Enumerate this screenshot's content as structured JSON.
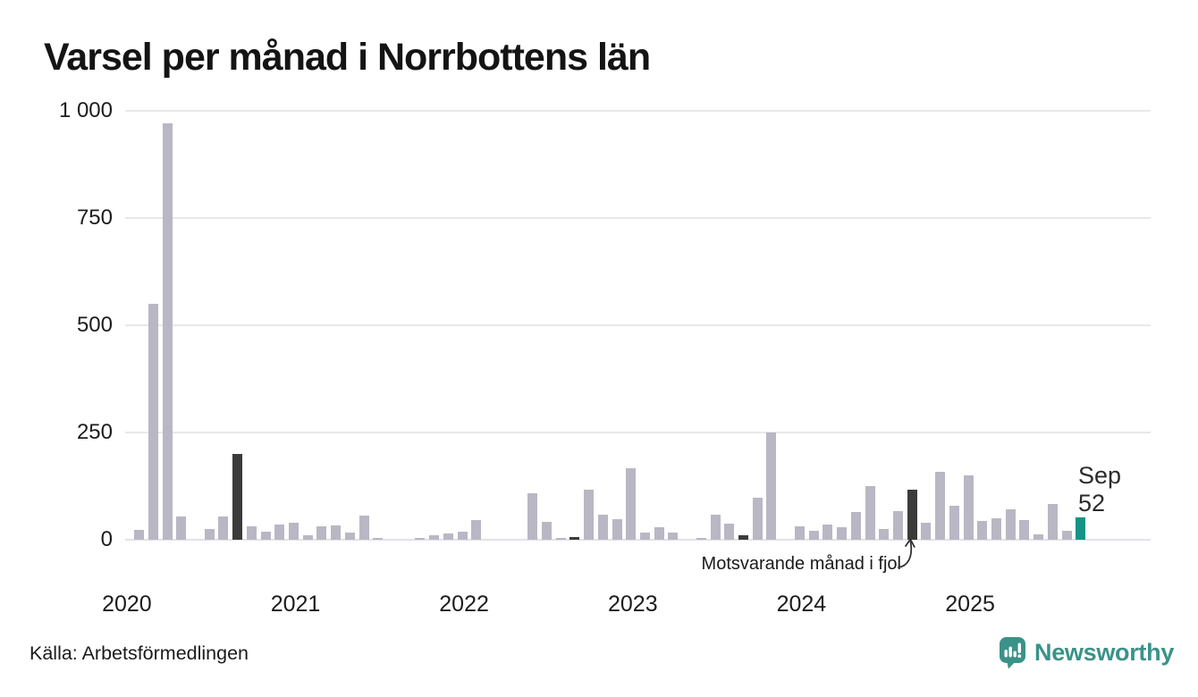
{
  "title": "Varsel per månad i Norrbottens län",
  "source": "Källa: Arbetsförmedlingen",
  "brand": {
    "name": "Newsworthy",
    "icon": "newsworthy-speech-bubble-chart-icon",
    "color": "#3b9289"
  },
  "annotation": {
    "text": "Motsvarande månad i fjol",
    "points_to": "2024-09"
  },
  "end_label": {
    "month": "Sep",
    "value": "52"
  },
  "colors": {
    "bar": "#b9b7c4",
    "same_month_bar": "#3b3b3b",
    "current_bar": "#149486",
    "gridline": "#e8e8ec",
    "text": "#1c1c1c"
  },
  "chart_data": {
    "type": "bar",
    "title": "Varsel per månad i Norrbottens län",
    "xlabel": "",
    "ylabel": "",
    "ylim": [
      0,
      1000
    ],
    "yticks": [
      "1 000",
      "750",
      "500",
      "250",
      "0"
    ],
    "ytick_values": [
      1000,
      750,
      500,
      250,
      0
    ],
    "years": [
      "2020",
      "2021",
      "2022",
      "2023",
      "2024",
      "2025"
    ],
    "grid": "horizontal only",
    "legend_position": "none",
    "highlight_notes": "dark bars = September each year (same month last year); teal bar = Sep 2025 current value",
    "months": [
      {
        "m": "2020-01",
        "v": 0,
        "t": "normal"
      },
      {
        "m": "2020-02",
        "v": 23,
        "t": "normal"
      },
      {
        "m": "2020-03",
        "v": 550,
        "t": "normal"
      },
      {
        "m": "2020-04",
        "v": 970,
        "t": "normal"
      },
      {
        "m": "2020-05",
        "v": 55,
        "t": "normal"
      },
      {
        "m": "2020-06",
        "v": 0,
        "t": "normal"
      },
      {
        "m": "2020-07",
        "v": 26,
        "t": "normal"
      },
      {
        "m": "2020-08",
        "v": 54,
        "t": "normal"
      },
      {
        "m": "2020-09",
        "v": 200,
        "t": "same-month"
      },
      {
        "m": "2020-10",
        "v": 31,
        "t": "normal"
      },
      {
        "m": "2020-11",
        "v": 19,
        "t": "normal"
      },
      {
        "m": "2020-12",
        "v": 35,
        "t": "normal"
      },
      {
        "m": "2021-01",
        "v": 39,
        "t": "normal"
      },
      {
        "m": "2021-02",
        "v": 11,
        "t": "normal"
      },
      {
        "m": "2021-03",
        "v": 31,
        "t": "normal"
      },
      {
        "m": "2021-04",
        "v": 33,
        "t": "normal"
      },
      {
        "m": "2021-05",
        "v": 17,
        "t": "normal"
      },
      {
        "m": "2021-06",
        "v": 57,
        "t": "normal"
      },
      {
        "m": "2021-07",
        "v": 5,
        "t": "normal"
      },
      {
        "m": "2021-08",
        "v": 0,
        "t": "normal"
      },
      {
        "m": "2021-09",
        "v": 0,
        "t": "same-month"
      },
      {
        "m": "2021-10",
        "v": 5,
        "t": "normal"
      },
      {
        "m": "2021-11",
        "v": 10,
        "t": "normal"
      },
      {
        "m": "2021-12",
        "v": 14,
        "t": "normal"
      },
      {
        "m": "2022-01",
        "v": 19,
        "t": "normal"
      },
      {
        "m": "2022-02",
        "v": 45,
        "t": "normal"
      },
      {
        "m": "2022-03",
        "v": 0,
        "t": "normal"
      },
      {
        "m": "2022-04",
        "v": 0,
        "t": "normal"
      },
      {
        "m": "2022-05",
        "v": 0,
        "t": "normal"
      },
      {
        "m": "2022-06",
        "v": 108,
        "t": "normal"
      },
      {
        "m": "2022-07",
        "v": 41,
        "t": "normal"
      },
      {
        "m": "2022-08",
        "v": 4,
        "t": "normal"
      },
      {
        "m": "2022-09",
        "v": 7,
        "t": "same-month"
      },
      {
        "m": "2022-10",
        "v": 117,
        "t": "normal"
      },
      {
        "m": "2022-11",
        "v": 59,
        "t": "normal"
      },
      {
        "m": "2022-12",
        "v": 47,
        "t": "normal"
      },
      {
        "m": "2023-01",
        "v": 166,
        "t": "normal"
      },
      {
        "m": "2023-02",
        "v": 16,
        "t": "normal"
      },
      {
        "m": "2023-03",
        "v": 30,
        "t": "normal"
      },
      {
        "m": "2023-04",
        "v": 17,
        "t": "normal"
      },
      {
        "m": "2023-05",
        "v": 0,
        "t": "normal"
      },
      {
        "m": "2023-06",
        "v": 4,
        "t": "normal"
      },
      {
        "m": "2023-07",
        "v": 59,
        "t": "normal"
      },
      {
        "m": "2023-08",
        "v": 38,
        "t": "normal"
      },
      {
        "m": "2023-09",
        "v": 11,
        "t": "same-month"
      },
      {
        "m": "2023-10",
        "v": 97,
        "t": "normal"
      },
      {
        "m": "2023-11",
        "v": 250,
        "t": "normal"
      },
      {
        "m": "2023-12",
        "v": 0,
        "t": "normal"
      },
      {
        "m": "2024-01",
        "v": 31,
        "t": "normal"
      },
      {
        "m": "2024-02",
        "v": 21,
        "t": "normal"
      },
      {
        "m": "2024-03",
        "v": 36,
        "t": "normal"
      },
      {
        "m": "2024-04",
        "v": 29,
        "t": "normal"
      },
      {
        "m": "2024-05",
        "v": 64,
        "t": "normal"
      },
      {
        "m": "2024-06",
        "v": 125,
        "t": "normal"
      },
      {
        "m": "2024-07",
        "v": 25,
        "t": "normal"
      },
      {
        "m": "2024-08",
        "v": 67,
        "t": "normal"
      },
      {
        "m": "2024-09",
        "v": 117,
        "t": "same-month"
      },
      {
        "m": "2024-10",
        "v": 40,
        "t": "normal"
      },
      {
        "m": "2024-11",
        "v": 158,
        "t": "normal"
      },
      {
        "m": "2024-12",
        "v": 80,
        "t": "normal"
      },
      {
        "m": "2025-01",
        "v": 150,
        "t": "normal"
      },
      {
        "m": "2025-02",
        "v": 44,
        "t": "normal"
      },
      {
        "m": "2025-03",
        "v": 49,
        "t": "normal"
      },
      {
        "m": "2025-04",
        "v": 71,
        "t": "normal"
      },
      {
        "m": "2025-05",
        "v": 46,
        "t": "normal"
      },
      {
        "m": "2025-06",
        "v": 13,
        "t": "normal"
      },
      {
        "m": "2025-07",
        "v": 84,
        "t": "normal"
      },
      {
        "m": "2025-08",
        "v": 20,
        "t": "normal"
      },
      {
        "m": "2025-09",
        "v": 52,
        "t": "current"
      }
    ]
  }
}
